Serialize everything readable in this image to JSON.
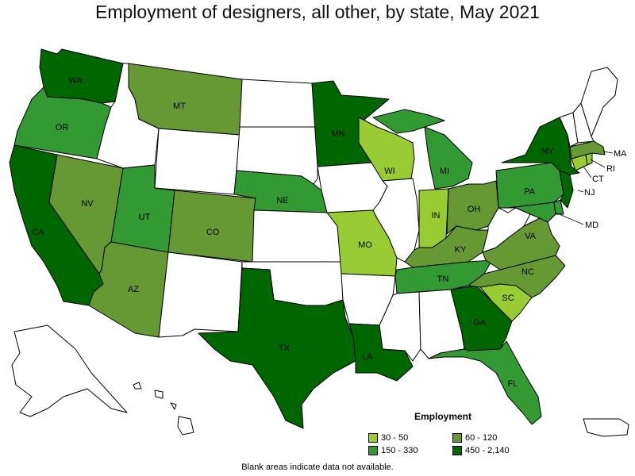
{
  "title": "Employment of designers, all other, by state, May 2021",
  "footnote": "Blank areas indicate data not available.",
  "colors": {
    "range1": "#99cc33",
    "range2": "#339933",
    "range3": "#669933",
    "range4": "#006600",
    "blank": "#ffffff"
  },
  "legend": {
    "title": "Employment",
    "items": [
      {
        "label": "30 - 50",
        "range": "range1"
      },
      {
        "label": "60 - 120",
        "range": "range3"
      },
      {
        "label": "150 - 330",
        "range": "range2"
      },
      {
        "label": "450 - 2,140",
        "range": "range4"
      }
    ]
  },
  "states": {
    "WA": {
      "label": "WA",
      "range": "range4"
    },
    "OR": {
      "label": "OR",
      "range": "range2"
    },
    "CA": {
      "label": "CA",
      "range": "range4"
    },
    "NV": {
      "label": "NV",
      "range": "range3"
    },
    "ID": {
      "label": "",
      "range": "blank"
    },
    "MT": {
      "label": "MT",
      "range": "range3"
    },
    "WY": {
      "label": "",
      "range": "blank"
    },
    "UT": {
      "label": "UT",
      "range": "range2"
    },
    "AZ": {
      "label": "AZ",
      "range": "range3"
    },
    "CO": {
      "label": "CO",
      "range": "range3"
    },
    "NM": {
      "label": "",
      "range": "blank"
    },
    "ND": {
      "label": "",
      "range": "blank"
    },
    "SD": {
      "label": "",
      "range": "blank"
    },
    "NE": {
      "label": "NE",
      "range": "range2"
    },
    "KS": {
      "label": "",
      "range": "blank"
    },
    "OK": {
      "label": "",
      "range": "blank"
    },
    "TX": {
      "label": "TX",
      "range": "range4"
    },
    "MN": {
      "label": "MN",
      "range": "range4"
    },
    "IA": {
      "label": "",
      "range": "blank"
    },
    "MO": {
      "label": "MO",
      "range": "range1"
    },
    "AR": {
      "label": "",
      "range": "blank"
    },
    "LA": {
      "label": "LA",
      "range": "range4"
    },
    "WI": {
      "label": "WI",
      "range": "range1"
    },
    "IL": {
      "label": "",
      "range": "blank"
    },
    "MI": {
      "label": "MI",
      "range": "range2"
    },
    "IN": {
      "label": "IN",
      "range": "range1"
    },
    "OH": {
      "label": "OH",
      "range": "range3"
    },
    "KY": {
      "label": "KY",
      "range": "range3"
    },
    "TN": {
      "label": "TN",
      "range": "range2"
    },
    "MS": {
      "label": "",
      "range": "blank"
    },
    "AL": {
      "label": "",
      "range": "blank"
    },
    "GA": {
      "label": "GA",
      "range": "range4"
    },
    "FL": {
      "label": "FL",
      "range": "range2"
    },
    "SC": {
      "label": "SC",
      "range": "range1"
    },
    "NC": {
      "label": "NC",
      "range": "range3"
    },
    "VA": {
      "label": "VA",
      "range": "range3"
    },
    "WV": {
      "label": "",
      "range": "blank"
    },
    "PA": {
      "label": "PA",
      "range": "range2"
    },
    "NY": {
      "label": "NY",
      "range": "range4"
    },
    "NJ": {
      "label": "NJ",
      "range": "range4"
    },
    "MD": {
      "label": "MD",
      "range": "range2"
    },
    "DE": {
      "label": "",
      "range": "range2"
    },
    "CT": {
      "label": "CT",
      "range": "range1"
    },
    "RI": {
      "label": "RI",
      "range": "range1"
    },
    "MA": {
      "label": "MA",
      "range": "range3"
    },
    "VT": {
      "label": "",
      "range": "blank"
    },
    "NH": {
      "label": "",
      "range": "blank"
    },
    "ME": {
      "label": "",
      "range": "blank"
    },
    "AK": {
      "label": "",
      "range": "blank"
    },
    "HI": {
      "label": "",
      "range": "blank"
    },
    "PR": {
      "label": "",
      "range": "blank"
    }
  }
}
